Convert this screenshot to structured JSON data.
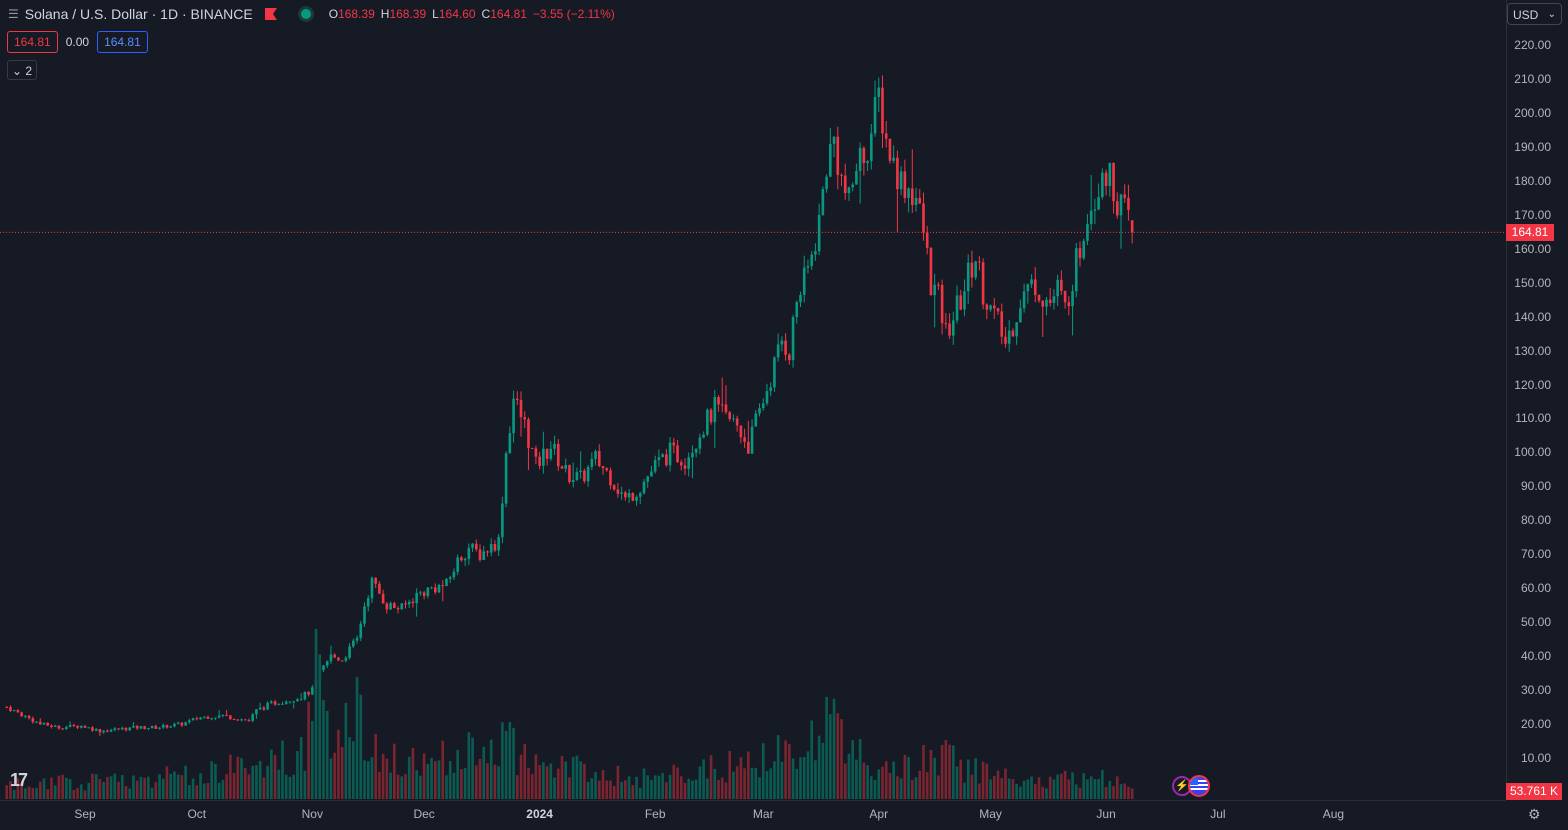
{
  "header": {
    "title": "Solana / U.S. Dollar · 1D · BINANCE",
    "ohlc": [
      {
        "k": "O",
        "v": "168.39"
      },
      {
        "k": "H",
        "v": "168.39"
      },
      {
        "k": "L",
        "v": "164.60"
      },
      {
        "k": "C",
        "v": "164.81"
      }
    ],
    "change": "−3.55 (−2.11%)"
  },
  "price_boxes": {
    "bid": "164.81",
    "spread": "0.00",
    "ask": "164.81"
  },
  "collapse_label": "2",
  "currency": "USD",
  "last_price_label": "164.81",
  "volume_label": "53.761 K",
  "colors": {
    "up": "#089981",
    "down": "#f23645",
    "background": "#161a25",
    "flag": "#f23645"
  },
  "icons": [
    "hamburger-icon",
    "flag-icon",
    "status-dot-icon",
    "chevron-down-icon",
    "tradingview-logo-icon",
    "flash-icon",
    "us-flag-event-icon",
    "settings-icon"
  ],
  "chart_data": {
    "type": "candlestick",
    "interval": "1D",
    "ylim": [
      0,
      224
    ],
    "y_ticks": [
      "220.00",
      "210.00",
      "200.00",
      "190.00",
      "180.00",
      "170.00",
      "160.00",
      "150.00",
      "140.00",
      "130.00",
      "120.00",
      "110.00",
      "100.00",
      "90.00",
      "80.00",
      "70.00",
      "60.00",
      "50.00",
      "40.00",
      "30.00",
      "20.00",
      "10.00"
    ],
    "x_ticks": [
      {
        "label": "Sep",
        "bold": false
      },
      {
        "label": "Oct",
        "bold": false
      },
      {
        "label": "Nov",
        "bold": false
      },
      {
        "label": "Dec",
        "bold": false
      },
      {
        "label": "2024",
        "bold": true
      },
      {
        "label": "Feb",
        "bold": false
      },
      {
        "label": "Mar",
        "bold": false
      },
      {
        "label": "Apr",
        "bold": false
      },
      {
        "label": "May",
        "bold": false
      },
      {
        "label": "Jun",
        "bold": false
      },
      {
        "label": "Jul",
        "bold": false
      },
      {
        "label": "Aug",
        "bold": false
      }
    ],
    "start_date": "2023-08-11",
    "price_path": [
      [
        0,
        25
      ],
      [
        9,
        20
      ],
      [
        14,
        19
      ],
      [
        20,
        19.5
      ],
      [
        25,
        18
      ],
      [
        30,
        18.5
      ],
      [
        35,
        19
      ],
      [
        40,
        19
      ],
      [
        47,
        20
      ],
      [
        52,
        22
      ],
      [
        58,
        22.5
      ],
      [
        65,
        21
      ],
      [
        67,
        24
      ],
      [
        71,
        26
      ],
      [
        75,
        27
      ],
      [
        79,
        28
      ],
      [
        82,
        30
      ],
      [
        84,
        35
      ],
      [
        87,
        40
      ],
      [
        90,
        39
      ],
      [
        94,
        45
      ],
      [
        96,
        55
      ],
      [
        98,
        62
      ],
      [
        102,
        55
      ],
      [
        106,
        54
      ],
      [
        110,
        58
      ],
      [
        114,
        60
      ],
      [
        118,
        61
      ],
      [
        121,
        68
      ],
      [
        124,
        72
      ],
      [
        127,
        70
      ],
      [
        132,
        74
      ],
      [
        134,
        100
      ],
      [
        136,
        116
      ],
      [
        139,
        108
      ],
      [
        142,
        96
      ],
      [
        146,
        102
      ],
      [
        150,
        94
      ],
      [
        154,
        92
      ],
      [
        158,
        98
      ],
      [
        162,
        93
      ],
      [
        166,
        86
      ],
      [
        170,
        90
      ],
      [
        174,
        96
      ],
      [
        178,
        100
      ],
      [
        182,
        98
      ],
      [
        186,
        106
      ],
      [
        190,
        113
      ],
      [
        193,
        110
      ],
      [
        196,
        108
      ],
      [
        199,
        102
      ],
      [
        202,
        112
      ],
      [
        205,
        122
      ],
      [
        208,
        133
      ],
      [
        210,
        130
      ],
      [
        212,
        145
      ],
      [
        214,
        150
      ],
      [
        216,
        158
      ],
      [
        218,
        168
      ],
      [
        220,
        185
      ],
      [
        222,
        192
      ],
      [
        224,
        180
      ],
      [
        226,
        173
      ],
      [
        228,
        185
      ],
      [
        230,
        188
      ],
      [
        232,
        194
      ],
      [
        234,
        205
      ],
      [
        236,
        192
      ],
      [
        238,
        185
      ],
      [
        240,
        180
      ],
      [
        242,
        178
      ],
      [
        244,
        175
      ],
      [
        246,
        165
      ],
      [
        248,
        150
      ],
      [
        250,
        145
      ],
      [
        252,
        135
      ],
      [
        254,
        140
      ],
      [
        256,
        145
      ],
      [
        258,
        152
      ],
      [
        260,
        158
      ],
      [
        262,
        148
      ],
      [
        264,
        142
      ],
      [
        266,
        138
      ],
      [
        268,
        132
      ],
      [
        270,
        138
      ],
      [
        272,
        145
      ],
      [
        274,
        148
      ],
      [
        276,
        150
      ],
      [
        278,
        146
      ],
      [
        280,
        144
      ],
      [
        282,
        148
      ],
      [
        284,
        142
      ],
      [
        286,
        152
      ],
      [
        288,
        160
      ],
      [
        290,
        172
      ],
      [
        292,
        175
      ],
      [
        294,
        185
      ],
      [
        296,
        180
      ],
      [
        298,
        175
      ],
      [
        300,
        170
      ],
      [
        301,
        168.39
      ],
      [
        302,
        164.81
      ]
    ],
    "volume_path": [
      [
        0,
        4
      ],
      [
        20,
        5
      ],
      [
        50,
        7
      ],
      [
        75,
        12
      ],
      [
        80,
        16
      ],
      [
        83,
        35
      ],
      [
        85,
        22
      ],
      [
        88,
        18
      ],
      [
        92,
        28
      ],
      [
        95,
        25
      ],
      [
        100,
        12
      ],
      [
        110,
        10
      ],
      [
        120,
        14
      ],
      [
        125,
        13
      ],
      [
        134,
        18
      ],
      [
        138,
        12
      ],
      [
        145,
        8
      ],
      [
        150,
        10
      ],
      [
        160,
        7
      ],
      [
        175,
        6
      ],
      [
        185,
        8
      ],
      [
        195,
        10
      ],
      [
        205,
        12
      ],
      [
        212,
        14
      ],
      [
        218,
        18
      ],
      [
        222,
        24
      ],
      [
        225,
        20
      ],
      [
        232,
        10
      ],
      [
        240,
        8
      ],
      [
        248,
        14
      ],
      [
        252,
        12
      ],
      [
        260,
        8
      ],
      [
        270,
        6
      ],
      [
        280,
        5
      ],
      [
        290,
        7
      ],
      [
        302,
        5
      ]
    ],
    "volume_max": 60,
    "last_volume": "53.761 K"
  }
}
